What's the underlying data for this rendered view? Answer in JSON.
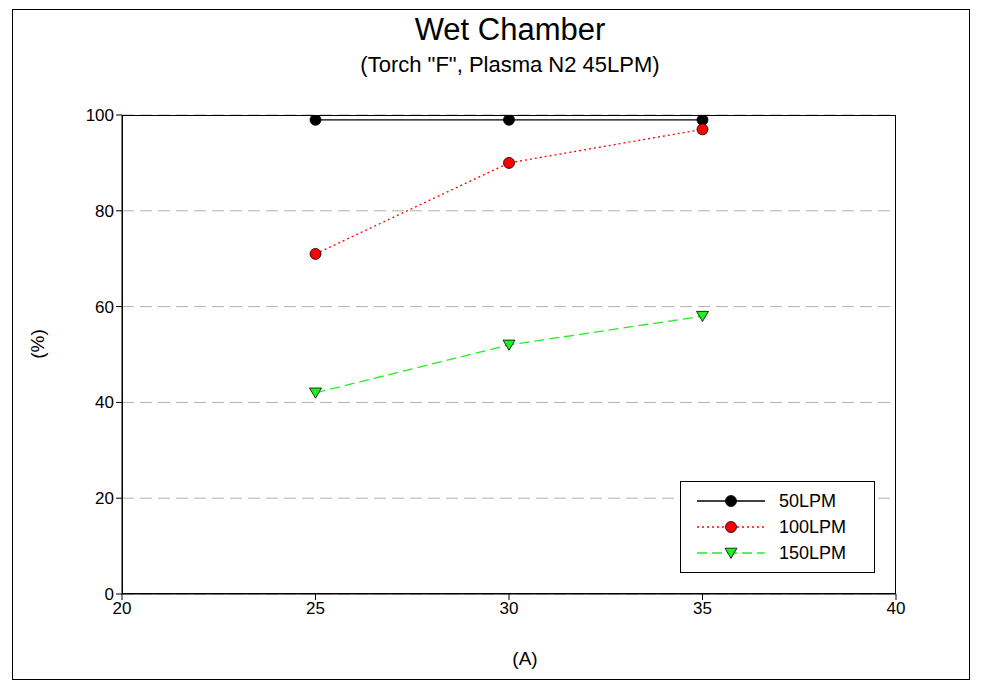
{
  "chart_data": {
    "type": "line",
    "title": "Wet Chamber",
    "subtitle": "(Torch \"F\", Plasma N2 45LPM)",
    "x_label": "(A)",
    "y_label": "(%)",
    "x": [
      25,
      30,
      35
    ],
    "xlim": [
      20,
      40
    ],
    "xticks": [
      20,
      25,
      30,
      35,
      40
    ],
    "ylim": [
      0,
      100
    ],
    "yticks": [
      0,
      20,
      40,
      60,
      80,
      100
    ],
    "grid": true,
    "legend": "lower right",
    "series": [
      {
        "name": "50LPM",
        "color": "#000000",
        "marker": "circle",
        "line_style": "solid",
        "values": [
          99,
          99,
          99
        ]
      },
      {
        "name": "100LPM",
        "color": "#ff0000",
        "marker": "circle",
        "line_style": "dotted",
        "values": [
          71,
          90,
          97
        ]
      },
      {
        "name": "150LPM",
        "color": "#22ee22",
        "marker": "triangle_down",
        "line_style": "dashed",
        "values": [
          42,
          52,
          58
        ]
      }
    ]
  }
}
